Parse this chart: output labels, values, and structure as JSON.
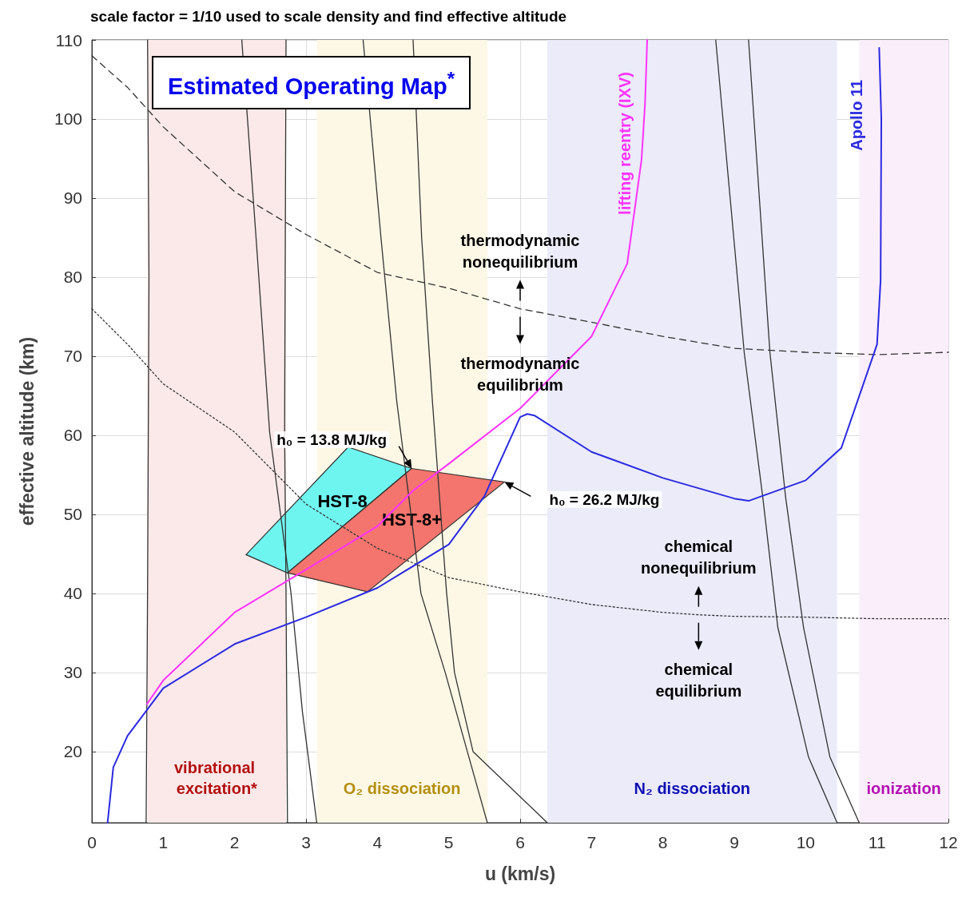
{
  "chart_data": {
    "type": "line",
    "title": "scale factor = 1/10 used to scale density and find effective altitude",
    "xlabel": "u (km/s)",
    "ylabel": "effective altitude (km)",
    "xlim": [
      0,
      12
    ],
    "xticks": [
      0,
      1,
      2,
      3,
      4,
      5,
      6,
      7,
      8,
      9,
      10,
      11,
      12
    ],
    "ylim": [
      11,
      110
    ],
    "yticks": [
      20,
      30,
      40,
      50,
      60,
      70,
      80,
      90,
      100,
      110
    ],
    "grid": true,
    "legend": false,
    "marker": "none",
    "series": [
      {
        "color": "#333333",
        "x": [
          0.76,
          0.78,
          0.8,
          0.78
        ],
        "values": [
          11,
          40,
          80,
          110
        ]
      },
      {
        "color": "#333333",
        "x": [
          3.15,
          2.95,
          2.79,
          2.49,
          2.3,
          2.1
        ],
        "values": [
          11,
          25,
          40,
          60.4,
          85,
          110
        ]
      },
      {
        "color": "#333333",
        "x": [
          2.74,
          2.72,
          2.7,
          2.72
        ],
        "values": [
          11,
          40,
          60.4,
          110
        ]
      },
      {
        "color": "#333333",
        "x": [
          5.54,
          5.26,
          4.95,
          4.61,
          4.27,
          4.05,
          3.8
        ],
        "values": [
          11,
          20,
          30,
          40,
          64.4,
          85,
          110
        ]
      },
      {
        "color": "#333333",
        "x": [
          6.38,
          5.34,
          5.08,
          4.97,
          4.77,
          4.62,
          4.5
        ],
        "values": [
          11,
          20,
          30,
          40,
          64.4,
          85,
          110
        ]
      },
      {
        "color": "#333333",
        "x": [
          10.44,
          10.04,
          9.61,
          9.4,
          9.14,
          8.74
        ],
        "values": [
          11,
          19.3,
          35.7,
          52.1,
          70.4,
          110
        ]
      },
      {
        "color": "#333333",
        "x": [
          10.75,
          10.34,
          9.97,
          9.72,
          9.5,
          9.2
        ],
        "values": [
          11,
          19.3,
          35.7,
          52.1,
          70.4,
          110
        ]
      },
      {
        "color": "#333333",
        "line_style": "dashed",
        "x": [
          0,
          0.5,
          1,
          2,
          3,
          4,
          5,
          6,
          7,
          8,
          9,
          10,
          11,
          12
        ],
        "values": [
          108,
          104,
          99,
          90.8,
          85.4,
          80.6,
          78.6,
          76,
          74.3,
          72.5,
          71,
          70.5,
          70.2,
          70.5
        ]
      },
      {
        "color": "#333333",
        "line_style": "dotted",
        "x": [
          0,
          0.5,
          1,
          2,
          3,
          4,
          5,
          6,
          7,
          8,
          8.5,
          9,
          10,
          11,
          12
        ],
        "values": [
          76,
          71.5,
          66.5,
          60.4,
          51.3,
          45.7,
          42,
          40.2,
          38.6,
          37.6,
          37.3,
          37.1,
          37,
          36.8,
          36.8
        ]
      },
      {
        "type": "area",
        "name": "HST-8",
        "color": "#6ff5f0",
        "x": [
          2.16,
          3.59,
          4.48,
          2.74
        ],
        "values": [
          44.9,
          58.5,
          55.8,
          42.6
        ]
      },
      {
        "type": "area",
        "name": "HST-8+",
        "color": "#f4756d",
        "x": [
          2.74,
          4.48,
          5.78,
          3.86
        ],
        "values": [
          42.6,
          55.8,
          54.1,
          40.2
        ]
      },
      {
        "name": "lifting reentry (IXV)",
        "color": "#ff33ff",
        "x": [
          0.77,
          1,
          2,
          3,
          4,
          4.5,
          5,
          6,
          7,
          7.5,
          7.7,
          7.75,
          7.78
        ],
        "values": [
          26,
          29,
          37.6,
          43,
          48.5,
          53,
          56.4,
          63.4,
          72.5,
          81.7,
          94.8,
          102,
          110
        ]
      },
      {
        "name": "Apollo 11",
        "color": "#2a2ae0",
        "x": [
          0.22,
          0.3,
          0.5,
          1,
          2,
          3,
          4,
          5,
          5.5,
          6,
          6.1,
          6.2,
          7,
          8,
          9,
          9.2,
          10,
          10.5,
          11,
          11.05,
          11.06,
          11.03
        ],
        "values": [
          11,
          18,
          22,
          28,
          33.6,
          37,
          40.7,
          46.2,
          52.3,
          62.3,
          62.7,
          62.5,
          57.9,
          54.6,
          52,
          51.7,
          54.3,
          58.4,
          71.5,
          79.6,
          100,
          109
        ]
      }
    ],
    "bands": [
      {
        "axis": "x",
        "from": 0.78,
        "to": 2.72,
        "label": "vibrational excitation*",
        "color": "#fbe9e9"
      },
      {
        "axis": "x",
        "from": 3.15,
        "to": 5.54,
        "label": "O₂ dissociation",
        "color": "#fdf8e6"
      },
      {
        "axis": "x",
        "from": 6.38,
        "to": 10.44,
        "label": "N₂ dissociation",
        "color": "#ebebfa"
      },
      {
        "axis": "x",
        "from": 10.75,
        "to": 12,
        "label": "ionization",
        "color": "#fbeefb"
      }
    ],
    "annotations": [
      "Estimated Operating Map$^{*}$",
      {
        "text": "thermodynamic nonequilibrium",
        "x": 6,
        "y": 76
      },
      {
        "text": "thermodynamic equilibrium",
        "x": 6,
        "y": 76
      },
      {
        "text": "chemical nonequilibrium",
        "x": 8.5,
        "y": 37.3
      },
      {
        "text": "chemical equilibrium",
        "x": 8.5,
        "y": 37.3
      },
      {
        "text": "h₀ = 13.8 MJ/kg",
        "x": 4.48,
        "y": 55.8
      },
      {
        "text": "h₀ = 26.2 MJ/kg",
        "x": 5.78,
        "y": 54.1
      }
    ]
  }
}
